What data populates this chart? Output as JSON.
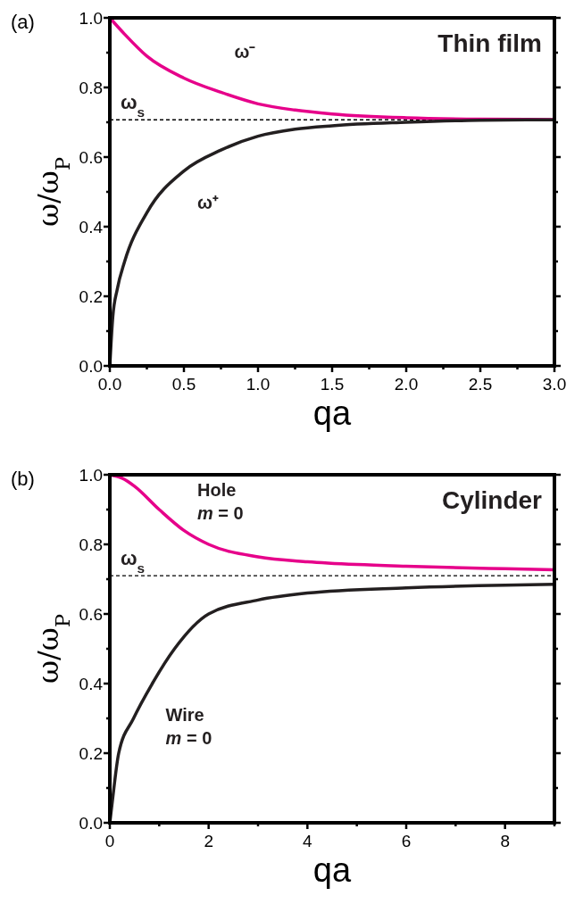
{
  "chart_data": [
    {
      "type": "line",
      "title": "Thin film",
      "xlabel": "qa",
      "ylabel": "ω/ω$_{P}$",
      "annotations": [
        "(a)"
      ],
      "xlim": [
        0,
        3
      ],
      "ylim": [
        0,
        1
      ],
      "xticks": [
        {
          "value": 0,
          "label": "0.0"
        },
        {
          "value": 0.25,
          "label": null
        },
        {
          "value": 0.5,
          "label": "0.5"
        },
        {
          "value": 0.75,
          "label": null
        },
        {
          "value": 1,
          "label": "1.0"
        },
        {
          "value": 1.25,
          "label": null
        },
        {
          "value": 1.5,
          "label": "1.5"
        },
        {
          "value": 1.75,
          "label": null
        },
        {
          "value": 2,
          "label": "2.0"
        },
        {
          "value": 2.25,
          "label": null
        },
        {
          "value": 2.5,
          "label": "2.5"
        },
        {
          "value": 2.75,
          "label": null
        },
        {
          "value": 3,
          "label": "3.0"
        }
      ],
      "yticks": [
        {
          "value": 0,
          "label": "0.0"
        },
        {
          "value": 0.1,
          "label": null
        },
        {
          "value": 0.2,
          "label": "0.2"
        },
        {
          "value": 0.3,
          "label": null
        },
        {
          "value": 0.4,
          "label": "0.4"
        },
        {
          "value": 0.5,
          "label": null
        },
        {
          "value": 0.6,
          "label": "0.6"
        },
        {
          "value": 0.7,
          "label": null
        },
        {
          "value": 0.8,
          "label": "0.8"
        },
        {
          "value": 0.9,
          "label": null
        },
        {
          "value": 1,
          "label": "1.0"
        }
      ],
      "ref_lines": [
        {
          "axis": "y",
          "value": 0.707,
          "label": "ω$_{s}$",
          "color": "#000000",
          "line_style": "dashed"
        }
      ],
      "series": [
        {
          "name": "ω⁻",
          "color": "#e6008a",
          "x": [
            0,
            0.1,
            0.25,
            0.5,
            0.75,
            1,
            1.25,
            1.5,
            2,
            2.5,
            3
          ],
          "values": [
            1,
            0.953,
            0.89,
            0.827,
            0.786,
            0.753,
            0.735,
            0.724,
            0.713,
            0.709,
            0.708
          ]
        },
        {
          "name": "ω⁺",
          "color": "#231f20",
          "x": [
            0,
            0.02,
            0.05,
            0.1,
            0.25,
            0.5,
            0.75,
            1,
            1.25,
            1.5,
            2,
            2.5,
            3
          ],
          "values": [
            0,
            0.14,
            0.22,
            0.3,
            0.44,
            0.56,
            0.62,
            0.66,
            0.68,
            0.69,
            0.7,
            0.706,
            0.707
          ]
        }
      ]
    },
    {
      "type": "line",
      "title": "Cylinder",
      "xlabel": "qa",
      "ylabel": "ω/ω$_{P}$",
      "annotations": [
        "(b)"
      ],
      "xlim": [
        0,
        9
      ],
      "ylim": [
        0,
        1
      ],
      "xticks": [
        0,
        {
          "value": 1,
          "label": null
        },
        2,
        {
          "value": 3,
          "label": null
        },
        4,
        {
          "value": 5,
          "label": null
        },
        6,
        {
          "value": 7,
          "label": null
        },
        8,
        {
          "value": 9,
          "label": null
        }
      ],
      "yticks": [
        {
          "value": 0,
          "label": "0.0"
        },
        {
          "value": 0.1,
          "label": null
        },
        {
          "value": 0.2,
          "label": "0.2"
        },
        {
          "value": 0.3,
          "label": null
        },
        {
          "value": 0.4,
          "label": "0.4"
        },
        {
          "value": 0.5,
          "label": null
        },
        {
          "value": 0.6,
          "label": "0.6"
        },
        {
          "value": 0.7,
          "label": null
        },
        {
          "value": 0.8,
          "label": "0.8"
        },
        {
          "value": 0.9,
          "label": null
        },
        {
          "value": 1,
          "label": "1.0"
        }
      ],
      "ref_lines": [
        {
          "axis": "y",
          "value": 0.71,
          "label": "ω$_{s}$",
          "color": "#000000",
          "line_style": "dashed"
        }
      ],
      "series": [
        {
          "name": "Hole m = 0",
          "color": "#e6008a",
          "x": [
            0,
            0.25,
            0.5,
            1,
            1.5,
            2,
            3,
            4,
            5,
            6,
            8,
            9
          ],
          "values": [
            1,
            0.99,
            0.967,
            0.9,
            0.84,
            0.8,
            0.764,
            0.75,
            0.742,
            0.737,
            0.73,
            0.727
          ]
        },
        {
          "name": "Wire m = 0",
          "color": "#231f20",
          "x": [
            0,
            0.05,
            0.18,
            0.48,
            0.86,
            1.31,
            2,
            3,
            4,
            6,
            8,
            9
          ],
          "values": [
            0,
            0.06,
            0.2,
            0.3,
            0.4,
            0.5,
            0.6,
            0.64,
            0.66,
            0.675,
            0.683,
            0.685
          ]
        }
      ]
    }
  ]
}
